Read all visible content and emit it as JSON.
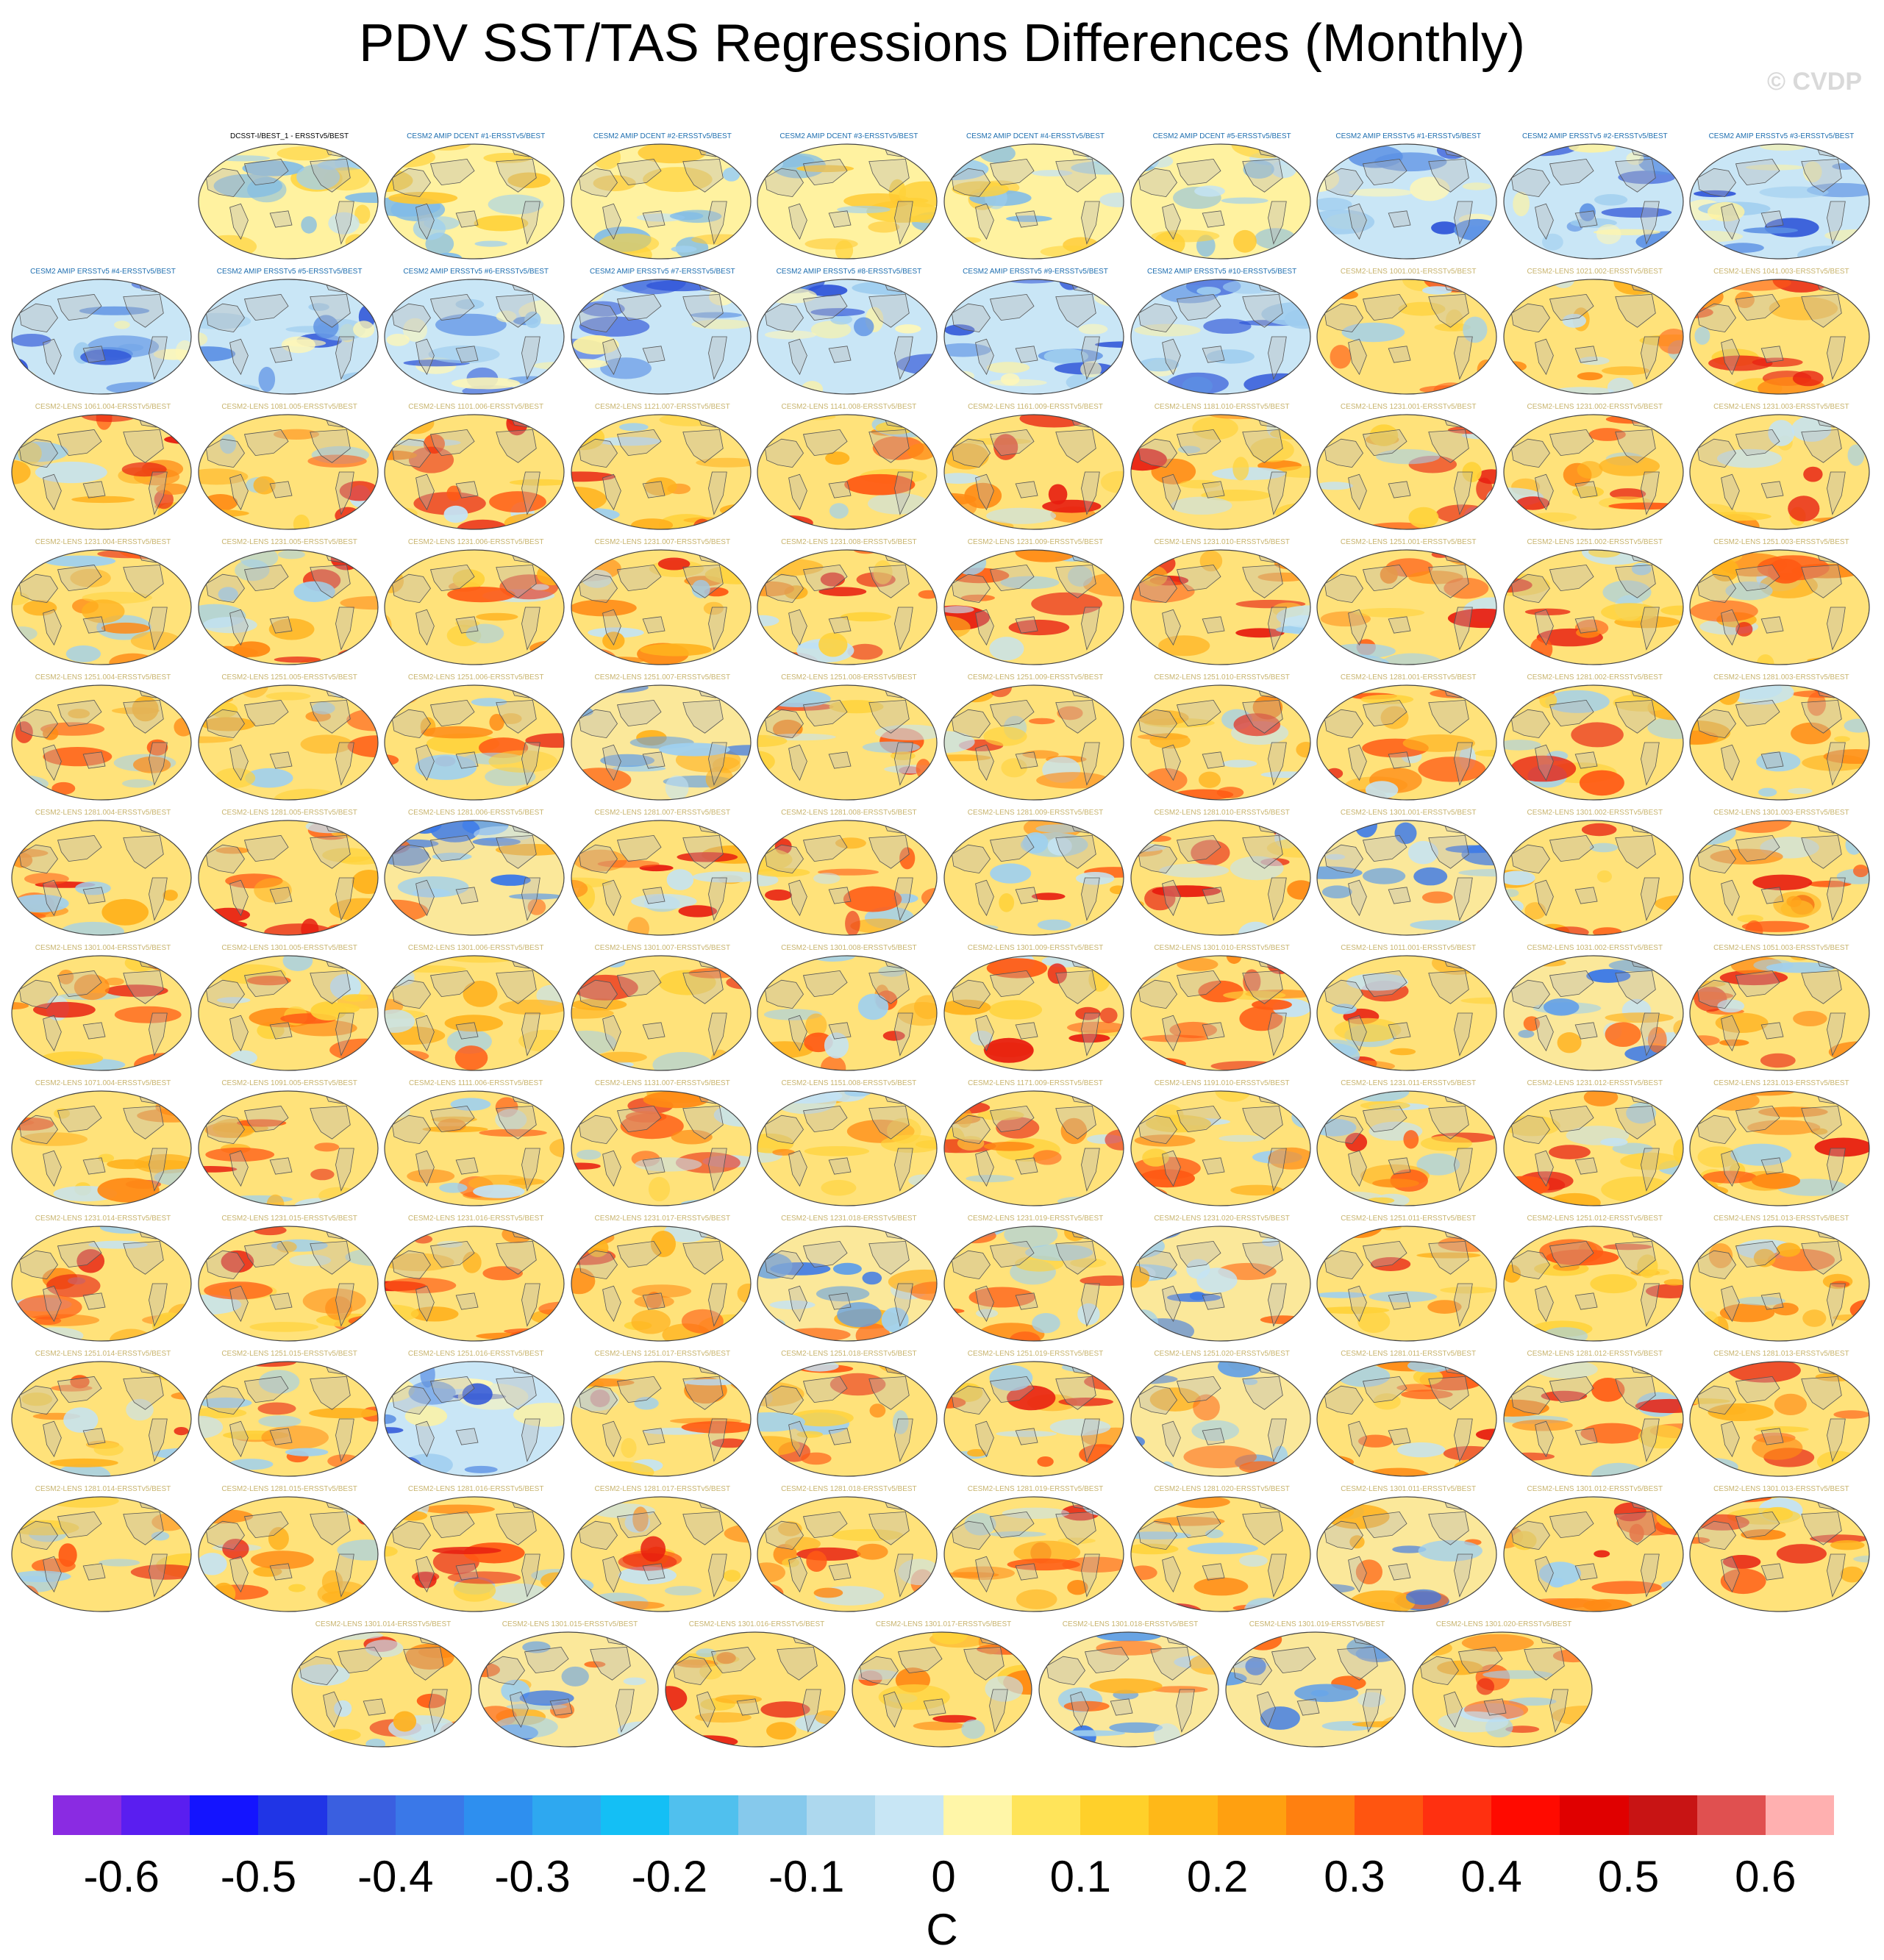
{
  "title": "PDV SST/TAS Regressions Differences (Monthly)",
  "watermark": "© CVDP",
  "unit": "C",
  "chart_data": {
    "type": "heatmap",
    "title": "PDV SST/TAS Regressions Differences (Monthly)",
    "colorbar": {
      "ticks": [
        "-0.6",
        "-0.5",
        "-0.4",
        "-0.3",
        "-0.2",
        "-0.1",
        "0",
        "0.1",
        "0.2",
        "0.3",
        "0.4",
        "0.5",
        "0.6"
      ],
      "colors": [
        "#8a2be2",
        "#5a1ef0",
        "#1414ff",
        "#2035e6",
        "#3a5fe0",
        "#3a78e8",
        "#2e8fef",
        "#2ea8f0",
        "#14bff5",
        "#50c0ee",
        "#86c9ec",
        "#add8ee",
        "#c8e6f5",
        "#fff6a8",
        "#ffe45a",
        "#ffd02a",
        "#ffb818",
        "#ffa010",
        "#ff8010",
        "#ff5510",
        "#ff3010",
        "#ff0a00",
        "#e00000",
        "#c81414",
        "#e05050",
        "#ffb0b0"
      ],
      "label": "C"
    },
    "panels": [
      {
        "label": "DCSST-I/BEST_1 - ERSSTv5/BEST",
        "tone": "mixed-warm",
        "label_color": "#000000"
      },
      {
        "label": "CESM2 AMIP DCENT #1-ERSSTv5/BEST",
        "tone": "mixed-warm",
        "label_color": "#1f6fb0"
      },
      {
        "label": "CESM2 AMIP DCENT #2-ERSSTv5/BEST",
        "tone": "mixed-warm",
        "label_color": "#1f6fb0"
      },
      {
        "label": "CESM2 AMIP DCENT #3-ERSSTv5/BEST",
        "tone": "mixed-warm",
        "label_color": "#1f6fb0"
      },
      {
        "label": "CESM2 AMIP DCENT #4-ERSSTv5/BEST",
        "tone": "mixed-warm",
        "label_color": "#1f6fb0"
      },
      {
        "label": "CESM2 AMIP DCENT #5-ERSSTv5/BEST",
        "tone": "mixed-warm",
        "label_color": "#1f6fb0"
      },
      {
        "label": "CESM2 AMIP ERSSTv5 #1-ERSSTv5/BEST",
        "tone": "cool",
        "label_color": "#1f6fb0"
      },
      {
        "label": "CESM2 AMIP ERSSTv5 #2-ERSSTv5/BEST",
        "tone": "cool",
        "label_color": "#1f6fb0"
      },
      {
        "label": "CESM2 AMIP ERSSTv5 #3-ERSSTv5/BEST",
        "tone": "cool",
        "label_color": "#1f6fb0"
      },
      {
        "label": "CESM2 AMIP ERSSTv5 #4-ERSSTv5/BEST",
        "tone": "cool",
        "label_color": "#1f6fb0"
      },
      {
        "label": "CESM2 AMIP ERSSTv5 #5-ERSSTv5/BEST",
        "tone": "cool",
        "label_color": "#1f6fb0"
      },
      {
        "label": "CESM2 AMIP ERSSTv5 #6-ERSSTv5/BEST",
        "tone": "cool",
        "label_color": "#1f6fb0"
      },
      {
        "label": "CESM2 AMIP ERSSTv5 #7-ERSSTv5/BEST",
        "tone": "cool",
        "label_color": "#1f6fb0"
      },
      {
        "label": "CESM2 AMIP ERSSTv5 #8-ERSSTv5/BEST",
        "tone": "cool",
        "label_color": "#1f6fb0"
      },
      {
        "label": "CESM2 AMIP ERSSTv5 #9-ERSSTv5/BEST",
        "tone": "cool",
        "label_color": "#1f6fb0"
      },
      {
        "label": "CESM2 AMIP ERSSTv5 #10-ERSSTv5/BEST",
        "tone": "cool",
        "label_color": "#1f6fb0"
      },
      {
        "label": "CESM2-LENS 1001.001-ERSSTv5/BEST",
        "tone": "warm",
        "label_color": "#c8b46e"
      },
      {
        "label": "CESM2-LENS 1021.002-ERSSTv5/BEST",
        "tone": "warm",
        "label_color": "#c8b46e"
      },
      {
        "label": "CESM2-LENS 1041.003-ERSSTv5/BEST",
        "tone": "warm",
        "label_color": "#c8b46e"
      },
      {
        "label": "CESM2-LENS 1061.004-ERSSTv5/BEST",
        "tone": "warm",
        "label_color": "#c8b46e"
      },
      {
        "label": "CESM2-LENS 1081.005-ERSSTv5/BEST",
        "tone": "warm",
        "label_color": "#c8b46e"
      },
      {
        "label": "CESM2-LENS 1101.006-ERSSTv5/BEST",
        "tone": "warm",
        "label_color": "#c8b46e"
      },
      {
        "label": "CESM2-LENS 1121.007-ERSSTv5/BEST",
        "tone": "warm",
        "label_color": "#c8b46e"
      },
      {
        "label": "CESM2-LENS 1141.008-ERSSTv5/BEST",
        "tone": "warm",
        "label_color": "#c8b46e"
      },
      {
        "label": "CESM2-LENS 1161.009-ERSSTv5/BEST",
        "tone": "warm",
        "label_color": "#c8b46e"
      },
      {
        "label": "CESM2-LENS 1181.010-ERSSTv5/BEST",
        "tone": "warm",
        "label_color": "#c8b46e"
      },
      {
        "label": "CESM2-LENS 1231.001-ERSSTv5/BEST",
        "tone": "warm",
        "label_color": "#c8b46e"
      },
      {
        "label": "CESM2-LENS 1231.002-ERSSTv5/BEST",
        "tone": "warm",
        "label_color": "#c8b46e"
      },
      {
        "label": "CESM2-LENS 1231.003-ERSSTv5/BEST",
        "tone": "warm",
        "label_color": "#c8b46e"
      },
      {
        "label": "CESM2-LENS 1231.004-ERSSTv5/BEST",
        "tone": "warm",
        "label_color": "#c8b46e"
      },
      {
        "label": "CESM2-LENS 1231.005-ERSSTv5/BEST",
        "tone": "warm",
        "label_color": "#c8b46e"
      },
      {
        "label": "CESM2-LENS 1231.006-ERSSTv5/BEST",
        "tone": "warm",
        "label_color": "#c8b46e"
      },
      {
        "label": "CESM2-LENS 1231.007-ERSSTv5/BEST",
        "tone": "warm",
        "label_color": "#c8b46e"
      },
      {
        "label": "CESM2-LENS 1231.008-ERSSTv5/BEST",
        "tone": "warm",
        "label_color": "#c8b46e"
      },
      {
        "label": "CESM2-LENS 1231.009-ERSSTv5/BEST",
        "tone": "warm",
        "label_color": "#c8b46e"
      },
      {
        "label": "CESM2-LENS 1231.010-ERSSTv5/BEST",
        "tone": "warm",
        "label_color": "#c8b46e"
      },
      {
        "label": "CESM2-LENS 1251.001-ERSSTv5/BEST",
        "tone": "warm",
        "label_color": "#c8b46e"
      },
      {
        "label": "CESM2-LENS 1251.002-ERSSTv5/BEST",
        "tone": "warm",
        "label_color": "#c8b46e"
      },
      {
        "label": "CESM2-LENS 1251.003-ERSSTv5/BEST",
        "tone": "warm",
        "label_color": "#c8b46e"
      },
      {
        "label": "CESM2-LENS 1251.004-ERSSTv5/BEST",
        "tone": "warm",
        "label_color": "#c8b46e"
      },
      {
        "label": "CESM2-LENS 1251.005-ERSSTv5/BEST",
        "tone": "warm",
        "label_color": "#c8b46e"
      },
      {
        "label": "CESM2-LENS 1251.006-ERSSTv5/BEST",
        "tone": "warm",
        "label_color": "#c8b46e"
      },
      {
        "label": "CESM2-LENS 1251.007-ERSSTv5/BEST",
        "tone": "mixed",
        "label_color": "#c8b46e"
      },
      {
        "label": "CESM2-LENS 1251.008-ERSSTv5/BEST",
        "tone": "warm",
        "label_color": "#c8b46e"
      },
      {
        "label": "CESM2-LENS 1251.009-ERSSTv5/BEST",
        "tone": "warm",
        "label_color": "#c8b46e"
      },
      {
        "label": "CESM2-LENS 1251.010-ERSSTv5/BEST",
        "tone": "warm",
        "label_color": "#c8b46e"
      },
      {
        "label": "CESM2-LENS 1281.001-ERSSTv5/BEST",
        "tone": "warm",
        "label_color": "#c8b46e"
      },
      {
        "label": "CESM2-LENS 1281.002-ERSSTv5/BEST",
        "tone": "warm",
        "label_color": "#c8b46e"
      },
      {
        "label": "CESM2-LENS 1281.003-ERSSTv5/BEST",
        "tone": "warm",
        "label_color": "#c8b46e"
      },
      {
        "label": "CESM2-LENS 1281.004-ERSSTv5/BEST",
        "tone": "warm",
        "label_color": "#c8b46e"
      },
      {
        "label": "CESM2-LENS 1281.005-ERSSTv5/BEST",
        "tone": "warm",
        "label_color": "#c8b46e"
      },
      {
        "label": "CESM2-LENS 1281.006-ERSSTv5/BEST",
        "tone": "mixed",
        "label_color": "#c8b46e"
      },
      {
        "label": "CESM2-LENS 1281.007-ERSSTv5/BEST",
        "tone": "warm",
        "label_color": "#c8b46e"
      },
      {
        "label": "CESM2-LENS 1281.008-ERSSTv5/BEST",
        "tone": "warm",
        "label_color": "#c8b46e"
      },
      {
        "label": "CESM2-LENS 1281.009-ERSSTv5/BEST",
        "tone": "warm",
        "label_color": "#c8b46e"
      },
      {
        "label": "CESM2-LENS 1281.010-ERSSTv5/BEST",
        "tone": "warm",
        "label_color": "#c8b46e"
      },
      {
        "label": "CESM2-LENS 1301.001-ERSSTv5/BEST",
        "tone": "mixed",
        "label_color": "#c8b46e"
      },
      {
        "label": "CESM2-LENS 1301.002-ERSSTv5/BEST",
        "tone": "warm",
        "label_color": "#c8b46e"
      },
      {
        "label": "CESM2-LENS 1301.003-ERSSTv5/BEST",
        "tone": "warm",
        "label_color": "#c8b46e"
      },
      {
        "label": "CESM2-LENS 1301.004-ERSSTv5/BEST",
        "tone": "warm",
        "label_color": "#c8b46e"
      },
      {
        "label": "CESM2-LENS 1301.005-ERSSTv5/BEST",
        "tone": "warm",
        "label_color": "#c8b46e"
      },
      {
        "label": "CESM2-LENS 1301.006-ERSSTv5/BEST",
        "tone": "warm",
        "label_color": "#c8b46e"
      },
      {
        "label": "CESM2-LENS 1301.007-ERSSTv5/BEST",
        "tone": "warm",
        "label_color": "#c8b46e"
      },
      {
        "label": "CESM2-LENS 1301.008-ERSSTv5/BEST",
        "tone": "warm",
        "label_color": "#c8b46e"
      },
      {
        "label": "CESM2-LENS 1301.009-ERSSTv5/BEST",
        "tone": "warm",
        "label_color": "#c8b46e"
      },
      {
        "label": "CESM2-LENS 1301.010-ERSSTv5/BEST",
        "tone": "warm",
        "label_color": "#c8b46e"
      },
      {
        "label": "CESM2-LENS 1011.001-ERSSTv5/BEST",
        "tone": "warm",
        "label_color": "#c8b46e"
      },
      {
        "label": "CESM2-LENS 1031.002-ERSSTv5/BEST",
        "tone": "mixed",
        "label_color": "#c8b46e"
      },
      {
        "label": "CESM2-LENS 1051.003-ERSSTv5/BEST",
        "tone": "warm",
        "label_color": "#c8b46e"
      },
      {
        "label": "CESM2-LENS 1071.004-ERSSTv5/BEST",
        "tone": "warm",
        "label_color": "#c8b46e"
      },
      {
        "label": "CESM2-LENS 1091.005-ERSSTv5/BEST",
        "tone": "warm",
        "label_color": "#c8b46e"
      },
      {
        "label": "CESM2-LENS 1111.006-ERSSTv5/BEST",
        "tone": "warm",
        "label_color": "#c8b46e"
      },
      {
        "label": "CESM2-LENS 1131.007-ERSSTv5/BEST",
        "tone": "warm",
        "label_color": "#c8b46e"
      },
      {
        "label": "CESM2-LENS 1151.008-ERSSTv5/BEST",
        "tone": "warm",
        "label_color": "#c8b46e"
      },
      {
        "label": "CESM2-LENS 1171.009-ERSSTv5/BEST",
        "tone": "warm",
        "label_color": "#c8b46e"
      },
      {
        "label": "CESM2-LENS 1191.010-ERSSTv5/BEST",
        "tone": "warm",
        "label_color": "#c8b46e"
      },
      {
        "label": "CESM2-LENS 1231.011-ERSSTv5/BEST",
        "tone": "warm",
        "label_color": "#c8b46e"
      },
      {
        "label": "CESM2-LENS 1231.012-ERSSTv5/BEST",
        "tone": "warm",
        "label_color": "#c8b46e"
      },
      {
        "label": "CESM2-LENS 1231.013-ERSSTv5/BEST",
        "tone": "warm",
        "label_color": "#c8b46e"
      },
      {
        "label": "CESM2-LENS 1231.014-ERSSTv5/BEST",
        "tone": "warm",
        "label_color": "#c8b46e"
      },
      {
        "label": "CESM2-LENS 1231.015-ERSSTv5/BEST",
        "tone": "warm",
        "label_color": "#c8b46e"
      },
      {
        "label": "CESM2-LENS 1231.016-ERSSTv5/BEST",
        "tone": "warm",
        "label_color": "#c8b46e"
      },
      {
        "label": "CESM2-LENS 1231.017-ERSSTv5/BEST",
        "tone": "warm",
        "label_color": "#c8b46e"
      },
      {
        "label": "CESM2-LENS 1231.018-ERSSTv5/BEST",
        "tone": "mixed",
        "label_color": "#c8b46e"
      },
      {
        "label": "CESM2-LENS 1231.019-ERSSTv5/BEST",
        "tone": "warm",
        "label_color": "#c8b46e"
      },
      {
        "label": "CESM2-LENS 1231.020-ERSSTv5/BEST",
        "tone": "mixed",
        "label_color": "#c8b46e"
      },
      {
        "label": "CESM2-LENS 1251.011-ERSSTv5/BEST",
        "tone": "warm",
        "label_color": "#c8b46e"
      },
      {
        "label": "CESM2-LENS 1251.012-ERSSTv5/BEST",
        "tone": "warm",
        "label_color": "#c8b46e"
      },
      {
        "label": "CESM2-LENS 1251.013-ERSSTv5/BEST",
        "tone": "warm",
        "label_color": "#c8b46e"
      },
      {
        "label": "CESM2-LENS 1251.014-ERSSTv5/BEST",
        "tone": "warm",
        "label_color": "#c8b46e"
      },
      {
        "label": "CESM2-LENS 1251.015-ERSSTv5/BEST",
        "tone": "warm",
        "label_color": "#c8b46e"
      },
      {
        "label": "CESM2-LENS 1251.016-ERSSTv5/BEST",
        "tone": "cool",
        "label_color": "#c8b46e"
      },
      {
        "label": "CESM2-LENS 1251.017-ERSSTv5/BEST",
        "tone": "warm",
        "label_color": "#c8b46e"
      },
      {
        "label": "CESM2-LENS 1251.018-ERSSTv5/BEST",
        "tone": "warm",
        "label_color": "#c8b46e"
      },
      {
        "label": "CESM2-LENS 1251.019-ERSSTv5/BEST",
        "tone": "warm",
        "label_color": "#c8b46e"
      },
      {
        "label": "CESM2-LENS 1251.020-ERSSTv5/BEST",
        "tone": "mixed",
        "label_color": "#c8b46e"
      },
      {
        "label": "CESM2-LENS 1281.011-ERSSTv5/BEST",
        "tone": "warm",
        "label_color": "#c8b46e"
      },
      {
        "label": "CESM2-LENS 1281.012-ERSSTv5/BEST",
        "tone": "warm",
        "label_color": "#c8b46e"
      },
      {
        "label": "CESM2-LENS 1281.013-ERSSTv5/BEST",
        "tone": "warm",
        "label_color": "#c8b46e"
      },
      {
        "label": "CESM2-LENS 1281.014-ERSSTv5/BEST",
        "tone": "warm",
        "label_color": "#c8b46e"
      },
      {
        "label": "CESM2-LENS 1281.015-ERSSTv5/BEST",
        "tone": "warm",
        "label_color": "#c8b46e"
      },
      {
        "label": "CESM2-LENS 1281.016-ERSSTv5/BEST",
        "tone": "warm",
        "label_color": "#c8b46e"
      },
      {
        "label": "CESM2-LENS 1281.017-ERSSTv5/BEST",
        "tone": "warm",
        "label_color": "#c8b46e"
      },
      {
        "label": "CESM2-LENS 1281.018-ERSSTv5/BEST",
        "tone": "warm",
        "label_color": "#c8b46e"
      },
      {
        "label": "CESM2-LENS 1281.019-ERSSTv5/BEST",
        "tone": "warm",
        "label_color": "#c8b46e"
      },
      {
        "label": "CESM2-LENS 1281.020-ERSSTv5/BEST",
        "tone": "warm",
        "label_color": "#c8b46e"
      },
      {
        "label": "CESM2-LENS 1301.011-ERSSTv5/BEST",
        "tone": "mixed",
        "label_color": "#c8b46e"
      },
      {
        "label": "CESM2-LENS 1301.012-ERSSTv5/BEST",
        "tone": "warm",
        "label_color": "#c8b46e"
      },
      {
        "label": "CESM2-LENS 1301.013-ERSSTv5/BEST",
        "tone": "warm",
        "label_color": "#c8b46e"
      },
      {
        "label": "CESM2-LENS 1301.014-ERSSTv5/BEST",
        "tone": "warm",
        "label_color": "#c8b46e"
      },
      {
        "label": "CESM2-LENS 1301.015-ERSSTv5/BEST",
        "tone": "mixed",
        "label_color": "#c8b46e"
      },
      {
        "label": "CESM2-LENS 1301.016-ERSSTv5/BEST",
        "tone": "warm",
        "label_color": "#c8b46e"
      },
      {
        "label": "CESM2-LENS 1301.017-ERSSTv5/BEST",
        "tone": "warm",
        "label_color": "#c8b46e"
      },
      {
        "label": "CESM2-LENS 1301.018-ERSSTv5/BEST",
        "tone": "mixed",
        "label_color": "#c8b46e"
      },
      {
        "label": "CESM2-LENS 1301.019-ERSSTv5/BEST",
        "tone": "mixed",
        "label_color": "#c8b46e"
      },
      {
        "label": "CESM2-LENS 1301.020-ERSSTv5/BEST",
        "tone": "warm",
        "label_color": "#c8b46e"
      }
    ]
  }
}
